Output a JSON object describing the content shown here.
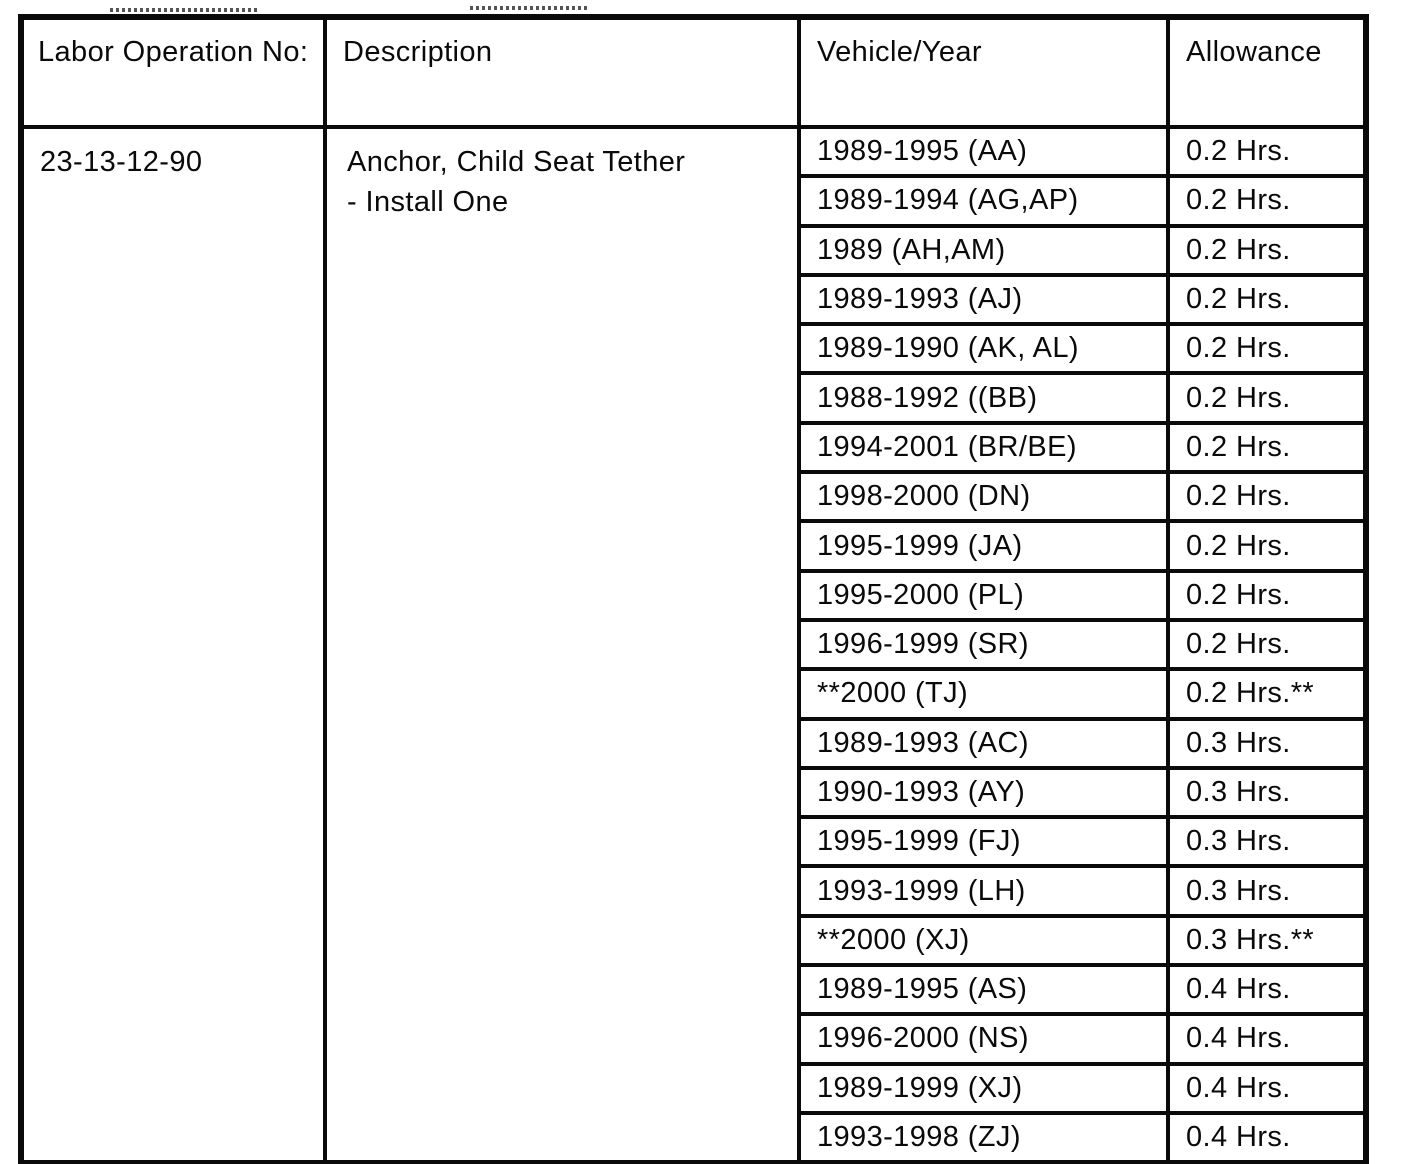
{
  "header": {
    "col_labor_op": "Labor Operation No:",
    "col_description": "Description",
    "col_vehicle_year": "Vehicle/Year",
    "col_allowance": "Allowance"
  },
  "record": {
    "labor_operation_no": "23-13-12-90",
    "description_line1": "Anchor, Child Seat Tether",
    "description_line2": "- Install One"
  },
  "rows": [
    {
      "vehicle_year": "1989-1995 (AA)",
      "allowance": "0.2 Hrs."
    },
    {
      "vehicle_year": "1989-1994 (AG,AP)",
      "allowance": "0.2 Hrs."
    },
    {
      "vehicle_year": "1989 (AH,AM)",
      "allowance": "0.2 Hrs."
    },
    {
      "vehicle_year": "1989-1993 (AJ)",
      "allowance": "0.2 Hrs."
    },
    {
      "vehicle_year": "1989-1990 (AK, AL)",
      "allowance": "0.2 Hrs."
    },
    {
      "vehicle_year": "1988-1992 ((BB)",
      "allowance": "0.2 Hrs."
    },
    {
      "vehicle_year": "1994-2001 (BR/BE)",
      "allowance": "0.2 Hrs."
    },
    {
      "vehicle_year": "1998-2000 (DN)",
      "allowance": "0.2 Hrs."
    },
    {
      "vehicle_year": "1995-1999 (JA)",
      "allowance": "0.2 Hrs."
    },
    {
      "vehicle_year": "1995-2000 (PL)",
      "allowance": "0.2 Hrs."
    },
    {
      "vehicle_year": "1996-1999 (SR)",
      "allowance": "0.2 Hrs."
    },
    {
      "vehicle_year": "**2000 (TJ)",
      "allowance": "0.2 Hrs.**"
    },
    {
      "vehicle_year": "1989-1993 (AC)",
      "allowance": "0.3 Hrs."
    },
    {
      "vehicle_year": "1990-1993 (AY)",
      "allowance": "0.3 Hrs."
    },
    {
      "vehicle_year": "1995-1999 (FJ)",
      "allowance": "0.3 Hrs."
    },
    {
      "vehicle_year": "1993-1999 (LH)",
      "allowance": "0.3 Hrs."
    },
    {
      "vehicle_year": "**2000 (XJ)",
      "allowance": "0.3 Hrs.**"
    },
    {
      "vehicle_year": "1989-1995 (AS)",
      "allowance": "0.4 Hrs."
    },
    {
      "vehicle_year": "1996-2000 (NS)",
      "allowance": "0.4 Hrs."
    },
    {
      "vehicle_year": "1989-1999 (XJ)",
      "allowance": "0.4 Hrs."
    },
    {
      "vehicle_year": "1993-1998 (ZJ)",
      "allowance": "0.4 Hrs."
    }
  ]
}
